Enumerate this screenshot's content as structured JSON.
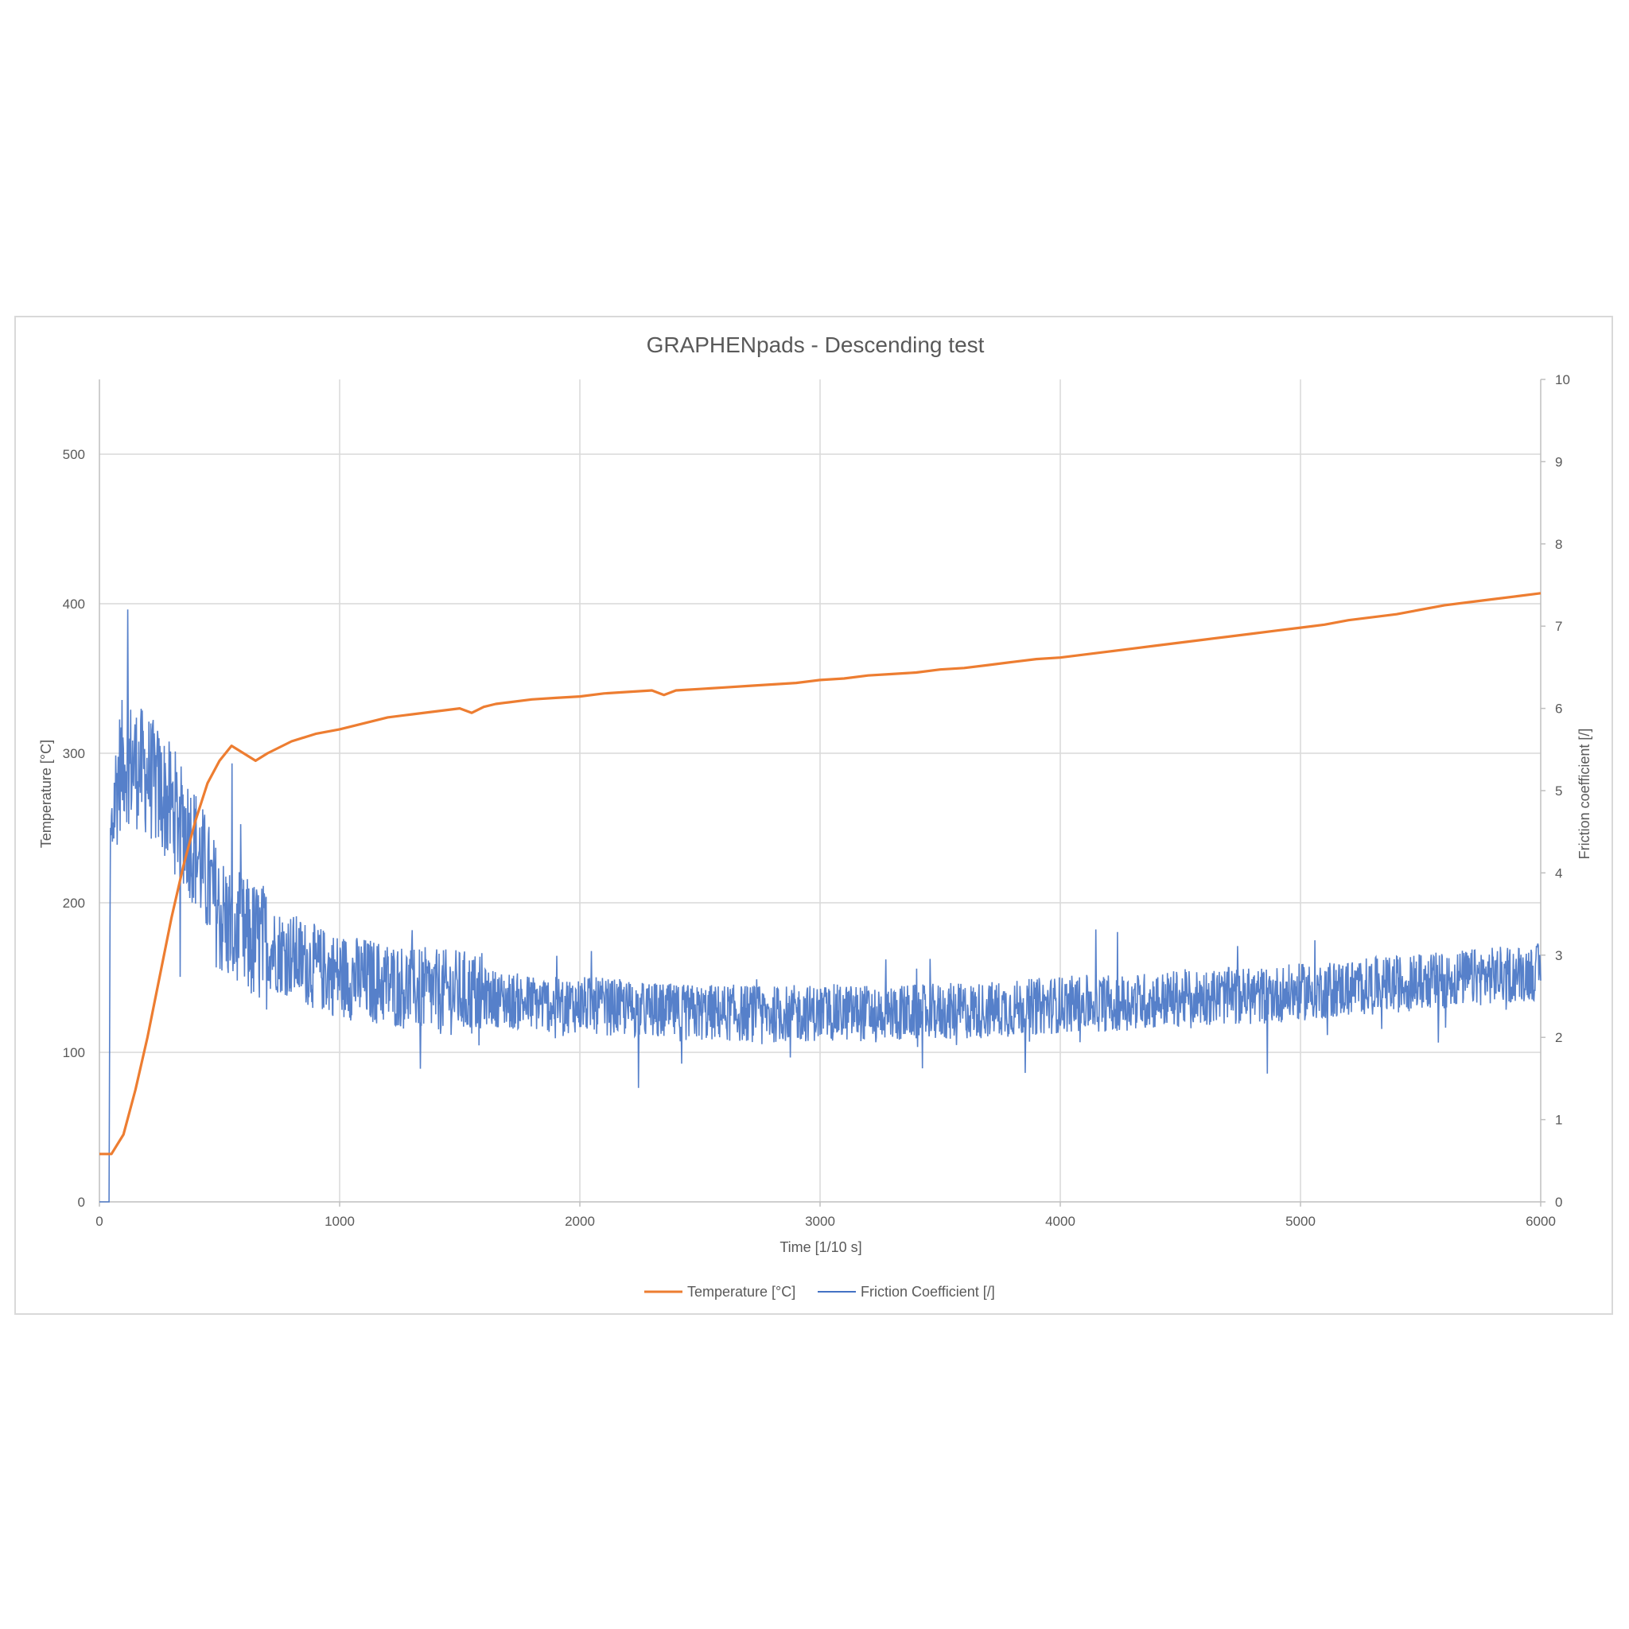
{
  "chart_data": {
    "type": "line",
    "title": "GRAPHENpads - Descending test",
    "xlabel": "Time [1/10 s]",
    "ylabel_left": "Temperature [°C]",
    "ylabel_right": "Friction coefficient [/]",
    "xlim": [
      0,
      6000
    ],
    "ylim_left": [
      0,
      550
    ],
    "ylim_right": [
      0,
      10
    ],
    "x_ticks": [
      0,
      1000,
      2000,
      3000,
      4000,
      5000,
      6000
    ],
    "y_left_ticks": [
      0,
      100,
      200,
      300,
      400,
      500
    ],
    "y_right_ticks": [
      0,
      1,
      2,
      3,
      4,
      5,
      6,
      7,
      8,
      9,
      10
    ],
    "grid": true,
    "legend_position": "bottom",
    "series": [
      {
        "name": "Temperature [°C]",
        "axis": "left",
        "color": "#ED7D31",
        "x": [
          0,
          50,
          100,
          150,
          200,
          250,
          300,
          350,
          400,
          450,
          500,
          550,
          600,
          650,
          700,
          800,
          900,
          1000,
          1100,
          1200,
          1300,
          1400,
          1500,
          1550,
          1600,
          1650,
          1700,
          1800,
          1900,
          2000,
          2100,
          2200,
          2300,
          2350,
          2400,
          2500,
          2600,
          2700,
          2800,
          2900,
          3000,
          3100,
          3200,
          3300,
          3400,
          3500,
          3600,
          3700,
          3800,
          3900,
          4000,
          4100,
          4200,
          4300,
          4400,
          4500,
          4600,
          4700,
          4800,
          4900,
          5000,
          5100,
          5200,
          5300,
          5400,
          5500,
          5600,
          5700,
          5800,
          5900,
          6000
        ],
        "values": [
          32,
          32,
          45,
          75,
          110,
          150,
          190,
          225,
          255,
          280,
          295,
          305,
          300,
          295,
          300,
          308,
          313,
          316,
          320,
          324,
          326,
          328,
          330,
          327,
          331,
          333,
          334,
          336,
          337,
          338,
          340,
          341,
          342,
          339,
          342,
          343,
          344,
          345,
          346,
          347,
          349,
          350,
          352,
          353,
          354,
          356,
          357,
          359,
          361,
          363,
          364,
          366,
          368,
          370,
          372,
          374,
          376,
          378,
          380,
          382,
          384,
          386,
          389,
          391,
          393,
          396,
          399,
          401,
          403,
          405,
          407
        ]
      },
      {
        "name": "Friction Coefficient [/]",
        "axis": "right",
        "color": "#4472C4",
        "x": [
          0,
          40,
          45,
          60,
          80,
          100,
          150,
          200,
          250,
          300,
          350,
          400,
          450,
          500,
          600,
          700,
          800,
          900,
          1000,
          1100,
          1200,
          1300,
          1400,
          1500,
          1600,
          1700,
          1800,
          1900,
          2000,
          2200,
          2400,
          2600,
          2800,
          3000,
          3200,
          3400,
          3600,
          3800,
          4000,
          4200,
          4400,
          4600,
          4800,
          5000,
          5200,
          5400,
          5600,
          5800,
          6000
        ],
        "values": [
          0,
          0,
          4.2,
          4.8,
          5.2,
          5.4,
          5.3,
          5.2,
          5.0,
          4.8,
          4.6,
          4.3,
          3.9,
          3.5,
          3.2,
          3.1,
          3.0,
          2.85,
          2.75,
          2.7,
          2.65,
          2.6,
          2.55,
          2.55,
          2.5,
          2.45,
          2.42,
          2.4,
          2.4,
          2.35,
          2.3,
          2.3,
          2.28,
          2.3,
          2.3,
          2.3,
          2.32,
          2.35,
          2.4,
          2.42,
          2.45,
          2.5,
          2.5,
          2.55,
          2.6,
          2.65,
          2.7,
          2.75,
          2.8
        ],
        "noise_amplitude": 0.35
      }
    ],
    "legend": [
      {
        "label": "Temperature [°C]",
        "color": "#ED7D31"
      },
      {
        "label": "Friction Coefficient [/]",
        "color": "#4472C4"
      }
    ]
  }
}
